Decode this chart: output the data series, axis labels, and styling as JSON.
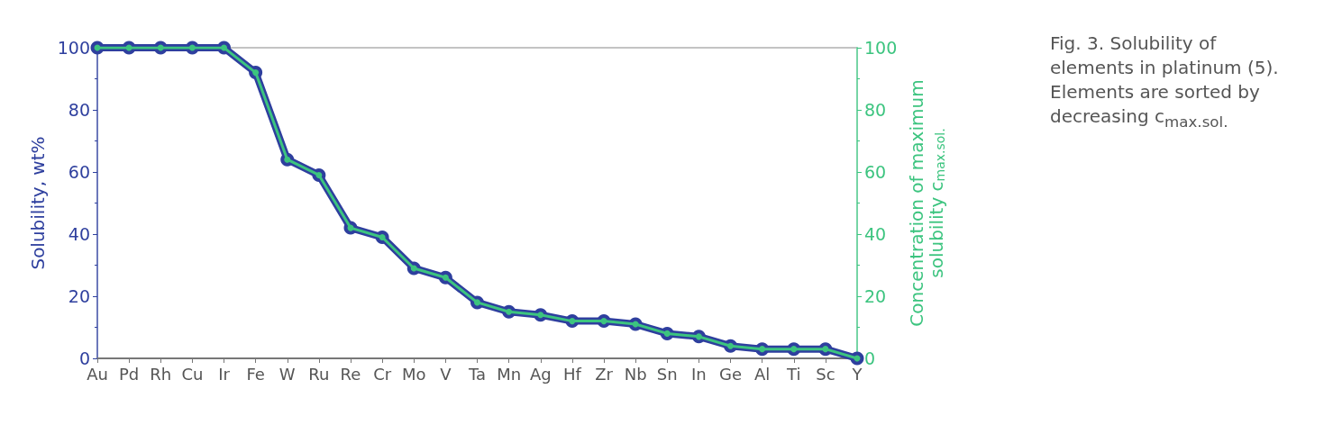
{
  "chart_data": {
    "type": "line",
    "categories": [
      "Au",
      "Pd",
      "Rh",
      "Cu",
      "Ir",
      "Fe",
      "W",
      "Ru",
      "Re",
      "Cr",
      "Mo",
      "V",
      "Ta",
      "Mn",
      "Ag",
      "Hf",
      "Zr",
      "Nb",
      "Sn",
      "In",
      "Ge",
      "Al",
      "Ti",
      "Sc",
      "Y"
    ],
    "series": [
      {
        "color": "#2e3f9e",
        "values": [
          100,
          100,
          100,
          100,
          100,
          92,
          64,
          59,
          42,
          39,
          29,
          26,
          18,
          15,
          14,
          12,
          12,
          11,
          8,
          7,
          4,
          3,
          3,
          3,
          0
        ]
      },
      {
        "color": "#3cc47f",
        "axis": "y2",
        "values": [
          100,
          100,
          100,
          100,
          100,
          92,
          64,
          59,
          42,
          39,
          29,
          26,
          18,
          15,
          14,
          12,
          12,
          11,
          8,
          7,
          4,
          3,
          3,
          3,
          0
        ]
      }
    ],
    "ylabel": "Solubility, wt%",
    "y2label": "Concentration of maximum\nsolubility c$_{max.sol.}$",
    "ylim": [
      0,
      100
    ],
    "yticks": [
      0,
      20,
      40,
      60,
      80,
      100
    ],
    "y2lim": [
      0,
      100
    ],
    "y2ticks": [
      0,
      20,
      40,
      60,
      80,
      100
    ],
    "annotations": [
      "Fig. 3. Solubility of elements in platinum (5). Elements are sorted by decreasing c$_{max.sol.}$"
    ],
    "marker": "circle",
    "line_style": "solid",
    "grid": false
  }
}
